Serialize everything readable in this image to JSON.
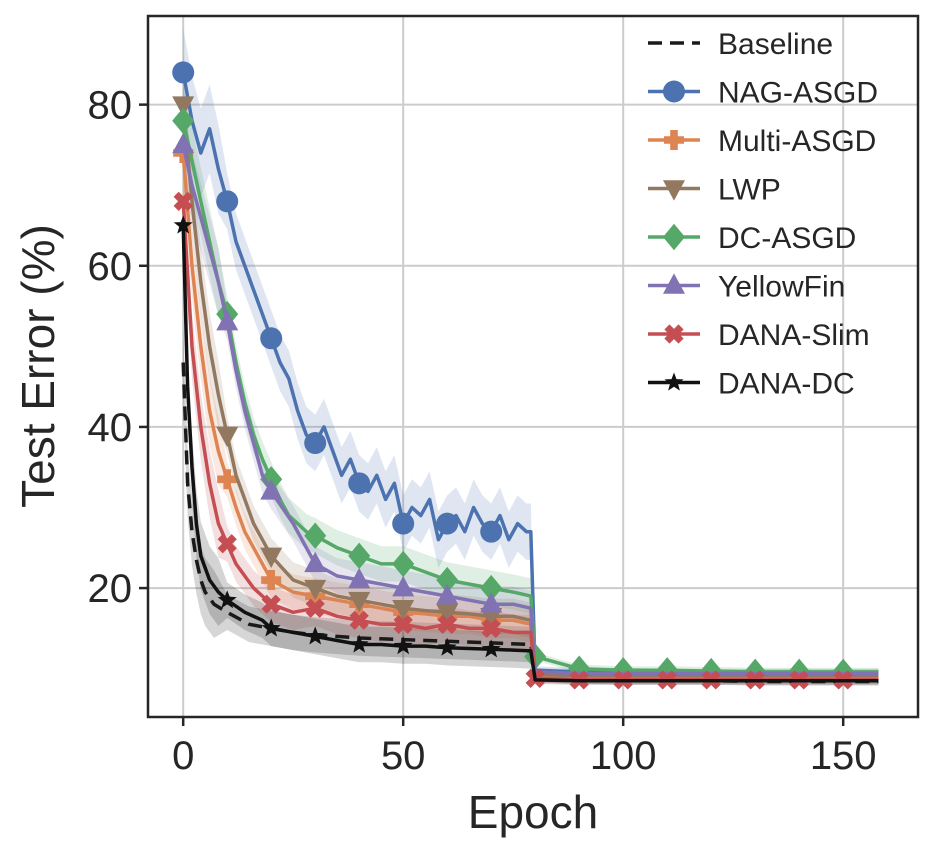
{
  "chart_data": {
    "type": "line",
    "title": "",
    "xlabel": "Epoch",
    "ylabel": "Test Error (%)",
    "xlim": [
      -8,
      167
    ],
    "ylim": [
      4,
      91
    ],
    "xticks": [
      0,
      50,
      100,
      150
    ],
    "yticks": [
      20,
      40,
      60,
      80
    ],
    "grid": true,
    "legend_position": "top-right",
    "series": [
      {
        "name": "Baseline",
        "color": "#1a1a1a",
        "dash": true,
        "marker": "none",
        "x": [
          0,
          1,
          2,
          3,
          4,
          5,
          7,
          10,
          15,
          20,
          25,
          30,
          40,
          50,
          60,
          70,
          79,
          80,
          90,
          100,
          110,
          120,
          130,
          140,
          150,
          158
        ],
        "values": [
          48,
          33,
          27,
          23.5,
          21,
          19.5,
          18,
          17,
          15.5,
          15,
          14.5,
          14.2,
          13.8,
          13.6,
          13.4,
          13.2,
          13.0,
          8.8,
          8.6,
          8.5,
          8.5,
          8.5,
          8.4,
          8.4,
          8.4,
          8.4
        ],
        "markers_x": []
      },
      {
        "name": "NAG-ASGD",
        "color": "#4c72b0",
        "dash": false,
        "marker": "circle",
        "x": [
          0,
          2,
          4,
          6,
          8,
          10,
          12,
          14,
          16,
          18,
          20,
          22,
          24,
          26,
          28,
          30,
          32,
          34,
          36,
          38,
          40,
          42,
          44,
          46,
          48,
          50,
          52,
          54,
          56,
          58,
          60,
          62,
          64,
          66,
          68,
          70,
          72,
          74,
          76,
          78,
          79,
          80,
          90,
          100,
          110,
          120,
          130,
          140,
          150,
          158
        ],
        "values": [
          84,
          78,
          74,
          77,
          72,
          68,
          63,
          60,
          57,
          54,
          51,
          48,
          46,
          42,
          39,
          38,
          40,
          37,
          34,
          36,
          33,
          32,
          34,
          31,
          33,
          28,
          30,
          29,
          31,
          26,
          28,
          29,
          27,
          30,
          28,
          27,
          29,
          26,
          28,
          27,
          27,
          9.8,
          9.6,
          9.6,
          9.5,
          9.5,
          9.5,
          9.5,
          9.5,
          9.5
        ],
        "markers_x": [
          0,
          10,
          20,
          30,
          40,
          50,
          60,
          70
        ]
      },
      {
        "name": "Multi-ASGD",
        "color": "#dd8452",
        "dash": false,
        "marker": "plus",
        "x": [
          0,
          2,
          4,
          6,
          8,
          10,
          12,
          14,
          16,
          18,
          20,
          25,
          30,
          35,
          40,
          45,
          50,
          55,
          60,
          65,
          70,
          75,
          79,
          80,
          90,
          100,
          110,
          120,
          130,
          140,
          150,
          158
        ],
        "values": [
          74,
          60,
          50,
          42,
          37,
          33.5,
          30,
          27,
          25,
          23,
          21,
          19.5,
          19,
          18.5,
          18,
          17.5,
          17,
          16.8,
          16.5,
          16.5,
          16,
          16,
          15.5,
          9.2,
          9.0,
          9.0,
          9.0,
          9.0,
          9.0,
          9.0,
          9.0,
          9.0
        ],
        "markers_x": [
          0,
          10,
          20,
          30,
          40,
          50,
          60,
          70
        ]
      },
      {
        "name": "LWP",
        "color": "#937860",
        "dash": false,
        "marker": "triangle-down",
        "x": [
          0,
          2,
          4,
          6,
          8,
          10,
          12,
          14,
          16,
          18,
          20,
          25,
          30,
          35,
          40,
          45,
          50,
          55,
          60,
          65,
          70,
          75,
          79,
          80,
          90,
          100,
          110,
          120,
          130,
          140,
          150,
          158
        ],
        "values": [
          80,
          68,
          58,
          50,
          44,
          39,
          34,
          31,
          28,
          26,
          24,
          21,
          20,
          19,
          18.5,
          18,
          17.5,
          17.2,
          17,
          16.8,
          16.5,
          16.5,
          16,
          9.3,
          9.1,
          9.1,
          9.1,
          9.1,
          9.1,
          9.1,
          9.1,
          9.1
        ],
        "markers_x": [
          0,
          10,
          20,
          30,
          40,
          50,
          60,
          70
        ]
      },
      {
        "name": "DC-ASGD",
        "color": "#55a868",
        "dash": false,
        "marker": "diamond",
        "x": [
          0,
          2,
          4,
          6,
          8,
          10,
          12,
          14,
          16,
          18,
          20,
          22,
          24,
          26,
          28,
          30,
          35,
          40,
          45,
          50,
          55,
          60,
          65,
          70,
          75,
          79,
          80,
          90,
          100,
          110,
          120,
          130,
          140,
          150,
          158
        ],
        "values": [
          78,
          73,
          68,
          63,
          58,
          54,
          48,
          43,
          39,
          36,
          33.5,
          31,
          29,
          28,
          27,
          26.5,
          25,
          24,
          23,
          23,
          22,
          21,
          20.5,
          20,
          19.5,
          19,
          11.5,
          10.0,
          9.8,
          9.8,
          9.7,
          9.6,
          9.6,
          9.6,
          9.6
        ],
        "markers_x": [
          0,
          10,
          20,
          30,
          40,
          50,
          60,
          70,
          80,
          90,
          100,
          110,
          120,
          130,
          140,
          150
        ]
      },
      {
        "name": "YellowFin",
        "color": "#8172b3",
        "dash": false,
        "marker": "triangle-up",
        "x": [
          0,
          2,
          4,
          6,
          8,
          10,
          12,
          14,
          16,
          18,
          20,
          25,
          30,
          35,
          40,
          45,
          50,
          55,
          60,
          65,
          70,
          75,
          79,
          80,
          90,
          100,
          110,
          120,
          130,
          140,
          150,
          158
        ],
        "values": [
          75,
          70,
          66,
          62,
          58,
          53,
          47,
          42,
          38,
          34,
          32,
          28,
          23,
          21.5,
          21,
          20.5,
          20,
          19.5,
          19,
          18.5,
          18,
          18,
          17.5,
          9.6,
          9.4,
          9.4,
          9.4,
          9.4,
          9.4,
          9.4,
          9.4,
          9.4
        ],
        "markers_x": [
          0,
          10,
          20,
          30,
          40,
          50,
          60,
          70
        ]
      },
      {
        "name": "DANA-Slim",
        "color": "#c44e52",
        "dash": false,
        "marker": "x",
        "x": [
          0,
          2,
          4,
          6,
          8,
          10,
          12,
          14,
          16,
          18,
          20,
          25,
          30,
          35,
          40,
          45,
          50,
          55,
          60,
          65,
          70,
          75,
          79,
          80,
          90,
          100,
          110,
          120,
          130,
          140,
          150,
          158
        ],
        "values": [
          68,
          50,
          40,
          33,
          28,
          25.5,
          23,
          21.5,
          20,
          19,
          18,
          17,
          17.5,
          16.5,
          16,
          15.5,
          15.5,
          15,
          15.5,
          15,
          15,
          14.5,
          14.5,
          8.8,
          8.6,
          8.6,
          8.6,
          8.6,
          8.6,
          8.6,
          8.6,
          8.6
        ],
        "markers_x": [
          0,
          10,
          20,
          30,
          40,
          50,
          60,
          70,
          80,
          90,
          100,
          110,
          120,
          130,
          140,
          150
        ]
      },
      {
        "name": "DANA-DC",
        "color": "#111111",
        "dash": false,
        "marker": "star",
        "x": [
          0,
          1,
          2,
          3,
          4,
          6,
          8,
          10,
          14,
          18,
          20,
          25,
          30,
          35,
          40,
          45,
          50,
          55,
          60,
          65,
          70,
          75,
          79,
          80,
          90,
          100,
          110,
          120,
          130,
          140,
          150,
          158
        ],
        "values": [
          65,
          45,
          35,
          28,
          24,
          21,
          19.5,
          18.5,
          17,
          16,
          15,
          14.5,
          14,
          13.5,
          13,
          13,
          12.8,
          12.8,
          12.6,
          12.5,
          12.4,
          12.3,
          12.2,
          8.6,
          8.5,
          8.5,
          8.5,
          8.5,
          8.5,
          8.5,
          8.5,
          8.5
        ],
        "markers_x": [
          0,
          10,
          20,
          30,
          40,
          50,
          60,
          70
        ]
      }
    ]
  }
}
